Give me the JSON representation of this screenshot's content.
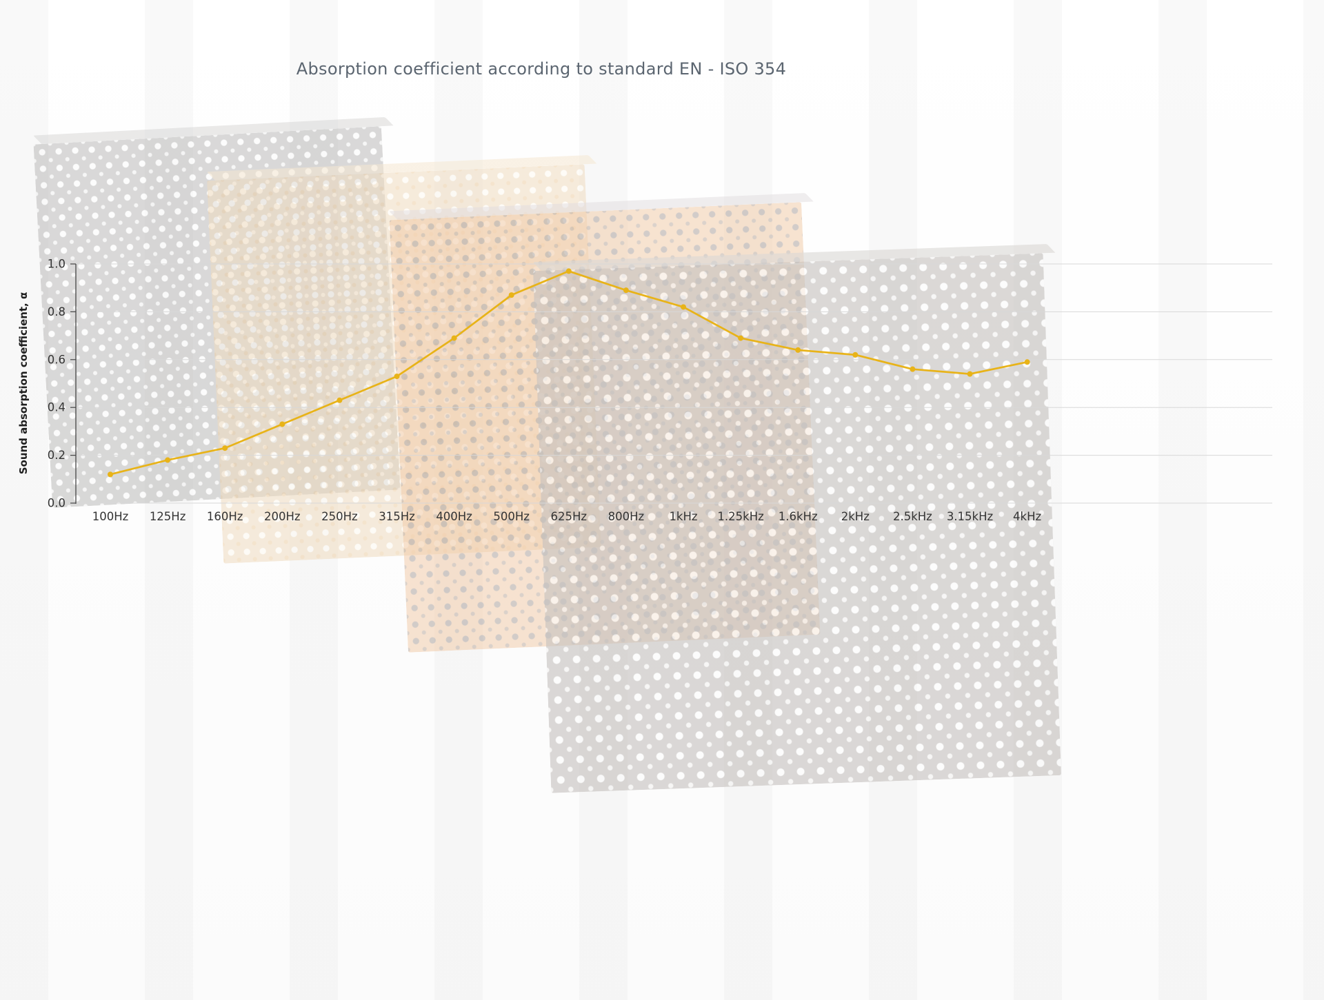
{
  "page": {
    "title": "Absorption coefficient according to standard EN - ISO 354"
  },
  "chart_data": {
    "type": "line",
    "title": "Absorption coefficient according to standard EN - ISO 354",
    "xlabel": "",
    "ylabel": "Sound absorption coefficient, α",
    "categories": [
      "100Hz",
      "125Hz",
      "160Hz",
      "200Hz",
      "250Hz",
      "315Hz",
      "400Hz",
      "500Hz",
      "625Hz",
      "800Hz",
      "1kHz",
      "1.25kHz",
      "1.6kHz",
      "2kHz",
      "2.5kHz",
      "3.15kHz",
      "4kHz"
    ],
    "series": [
      {
        "name": "Sound absorption coefficient, α",
        "values": [
          0.12,
          0.18,
          0.23,
          0.33,
          0.43,
          0.53,
          0.69,
          0.87,
          0.97,
          0.89,
          0.82,
          0.69,
          0.64,
          0.62,
          0.56,
          0.54,
          0.59
        ]
      }
    ],
    "ylim": [
      0.0,
      1.0
    ],
    "yticks": [
      0.0,
      0.2,
      0.4,
      0.6,
      0.8,
      1.0
    ],
    "grid": true,
    "legend": "none",
    "line_color": "#E8B318",
    "grid_color": "#d8d8d8",
    "axis_color": "#444444",
    "label_color": "#333333",
    "title_color": "#5b6570"
  }
}
